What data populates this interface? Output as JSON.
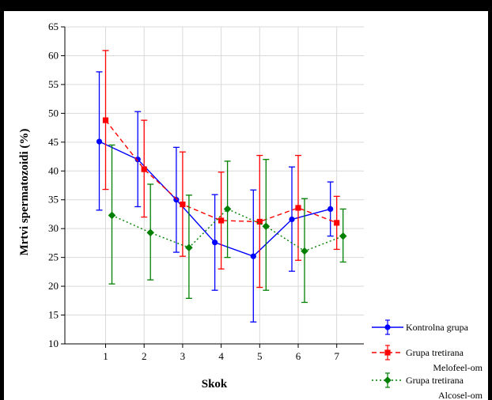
{
  "chart_data": {
    "type": "line",
    "title": "",
    "xlabel": "Skok",
    "ylabel": "Mrtvi spermatozoidi (%)",
    "categories": [
      "1",
      "2",
      "3",
      "4",
      "5",
      "6",
      "7"
    ],
    "ylim": [
      10,
      65
    ],
    "yticks": [
      10,
      15,
      20,
      25,
      30,
      35,
      40,
      45,
      50,
      55,
      60,
      65
    ],
    "grid": true,
    "legend_position": "bottom-right",
    "series": [
      {
        "name": "Kontrolna grupa",
        "color": "#0000ff",
        "marker": "circle",
        "line_style": "solid",
        "values": [
          45.1,
          42.0,
          35.0,
          27.6,
          25.2,
          31.6,
          33.4
        ],
        "err_low": [
          33.2,
          33.8,
          25.9,
          19.3,
          13.8,
          22.6,
          28.7
        ],
        "err_high": [
          57.2,
          50.3,
          44.1,
          35.9,
          36.7,
          40.7,
          38.1
        ]
      },
      {
        "name": "Grupa tretirana Melofeel-om",
        "name_lines": [
          "Grupa tretirana",
          "Melofeel-om"
        ],
        "color": "#ff0000",
        "marker": "square",
        "line_style": "dashed",
        "values": [
          48.8,
          40.3,
          34.2,
          31.4,
          31.2,
          33.6,
          31.0
        ],
        "err_low": [
          36.8,
          32.0,
          25.2,
          23.0,
          19.8,
          24.5,
          26.4
        ],
        "err_high": [
          60.9,
          48.8,
          43.3,
          39.8,
          42.7,
          42.7,
          35.6
        ]
      },
      {
        "name": "Grupa tretirana Alcosel-om",
        "name_lines": [
          "Grupa tretirana",
          "Alcosel-om"
        ],
        "color": "#008000",
        "marker": "diamond",
        "line_style": "dotted",
        "values": [
          32.3,
          29.3,
          26.7,
          33.4,
          30.4,
          26.1,
          28.7
        ],
        "err_low": [
          20.4,
          21.1,
          17.9,
          25.0,
          19.3,
          17.2,
          24.2
        ],
        "err_high": [
          44.5,
          37.7,
          35.8,
          41.7,
          42.0,
          35.2,
          33.4
        ]
      }
    ]
  }
}
